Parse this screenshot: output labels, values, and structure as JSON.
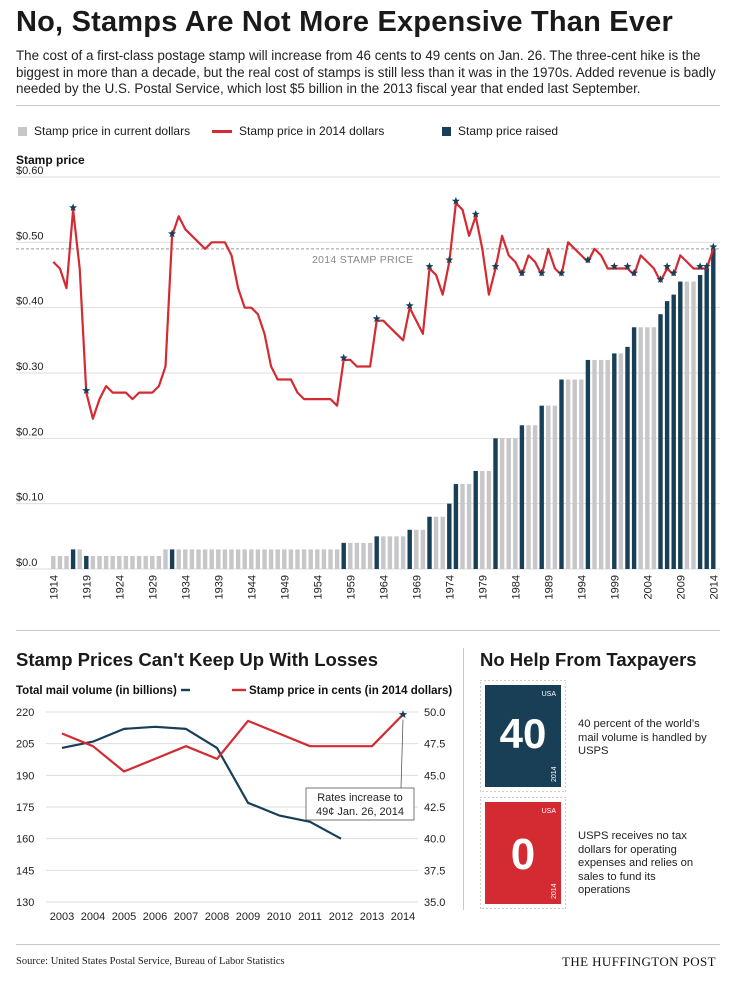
{
  "header": {
    "title": "No, Stamps Are Not More Expensive Than Ever",
    "subtitle": "The cost of a first-class postage stamp will increase from 46 cents to 49 cents on Jan. 26. The three-cent hike is the biggest in more than a decade, but the real cost of stamps is still less than it was in the 1970s. Added revenue is badly needed by the U.S. Postal Service, which lost $5 billion in the 2013 fiscal year that ended last September."
  },
  "legend": {
    "current": "Stamp price in current dollars",
    "real": "Stamp price in 2014 dollars",
    "raised": "Stamp price raised"
  },
  "colors": {
    "red": "#d42a32",
    "navy": "#183f56",
    "gray": "#c7c7c9",
    "grid": "#dedede"
  },
  "chart_data": [
    {
      "type": "bar",
      "title": "Stamp price",
      "ylabel": "Stamp price",
      "ylim": [
        0,
        0.6
      ],
      "yticks": [
        "$0.0",
        "$0.10",
        "$0.20",
        "$0.30",
        "$0.40",
        "$0.50",
        "$0.60"
      ],
      "x_tick_labels": [
        "1914",
        "1919",
        "1924",
        "1929",
        "1934",
        "1939",
        "1944",
        "1949",
        "1954",
        "1959",
        "1964",
        "1969",
        "1974",
        "1979",
        "1984",
        "1989",
        "1994",
        "1999",
        "2004",
        "2009",
        "2014"
      ],
      "reference_line": {
        "label": "2014 STAMP PRICE",
        "value": 0.49
      },
      "years": [
        1914,
        1915,
        1916,
        1917,
        1918,
        1919,
        1920,
        1921,
        1922,
        1923,
        1924,
        1925,
        1926,
        1927,
        1928,
        1929,
        1930,
        1931,
        1932,
        1933,
        1934,
        1935,
        1936,
        1937,
        1938,
        1939,
        1940,
        1941,
        1942,
        1943,
        1944,
        1945,
        1946,
        1947,
        1948,
        1949,
        1950,
        1951,
        1952,
        1953,
        1954,
        1955,
        1956,
        1957,
        1958,
        1959,
        1960,
        1961,
        1962,
        1963,
        1964,
        1965,
        1966,
        1967,
        1968,
        1969,
        1970,
        1971,
        1972,
        1973,
        1974,
        1975,
        1976,
        1977,
        1978,
        1979,
        1980,
        1981,
        1982,
        1983,
        1984,
        1985,
        1986,
        1987,
        1988,
        1989,
        1990,
        1991,
        1992,
        1993,
        1994,
        1995,
        1996,
        1997,
        1998,
        1999,
        2000,
        2001,
        2002,
        2003,
        2004,
        2005,
        2006,
        2007,
        2008,
        2009,
        2010,
        2011,
        2012,
        2013,
        2014
      ],
      "series": [
        {
          "name": "Stamp price in current dollars",
          "values": [
            0.02,
            0.02,
            0.02,
            0.03,
            0.03,
            0.02,
            0.02,
            0.02,
            0.02,
            0.02,
            0.02,
            0.02,
            0.02,
            0.02,
            0.02,
            0.02,
            0.02,
            0.03,
            0.03,
            0.03,
            0.03,
            0.03,
            0.03,
            0.03,
            0.03,
            0.03,
            0.03,
            0.03,
            0.03,
            0.03,
            0.03,
            0.03,
            0.03,
            0.03,
            0.03,
            0.03,
            0.03,
            0.03,
            0.03,
            0.03,
            0.03,
            0.03,
            0.03,
            0.03,
            0.04,
            0.04,
            0.04,
            0.04,
            0.04,
            0.05,
            0.05,
            0.05,
            0.05,
            0.05,
            0.06,
            0.06,
            0.06,
            0.08,
            0.08,
            0.08,
            0.1,
            0.13,
            0.13,
            0.13,
            0.15,
            0.15,
            0.15,
            0.2,
            0.2,
            0.2,
            0.2,
            0.22,
            0.22,
            0.22,
            0.25,
            0.25,
            0.25,
            0.29,
            0.29,
            0.29,
            0.29,
            0.32,
            0.32,
            0.32,
            0.32,
            0.33,
            0.33,
            0.34,
            0.37,
            0.37,
            0.37,
            0.37,
            0.39,
            0.41,
            0.42,
            0.44,
            0.44,
            0.44,
            0.45,
            0.46,
            0.49
          ]
        },
        {
          "name": "Stamp price in 2014 dollars",
          "values": [
            0.47,
            0.46,
            0.43,
            0.55,
            0.46,
            0.27,
            0.23,
            0.26,
            0.28,
            0.27,
            0.27,
            0.27,
            0.26,
            0.27,
            0.27,
            0.27,
            0.28,
            0.31,
            0.51,
            0.54,
            0.52,
            0.51,
            0.5,
            0.49,
            0.5,
            0.5,
            0.5,
            0.48,
            0.43,
            0.4,
            0.4,
            0.39,
            0.36,
            0.31,
            0.29,
            0.29,
            0.29,
            0.27,
            0.26,
            0.26,
            0.26,
            0.26,
            0.26,
            0.25,
            0.32,
            0.32,
            0.31,
            0.31,
            0.31,
            0.38,
            0.38,
            0.37,
            0.36,
            0.35,
            0.4,
            0.38,
            0.36,
            0.46,
            0.45,
            0.42,
            0.47,
            0.56,
            0.55,
            0.51,
            0.54,
            0.49,
            0.42,
            0.46,
            0.51,
            0.48,
            0.47,
            0.45,
            0.48,
            0.47,
            0.45,
            0.49,
            0.46,
            0.45,
            0.5,
            0.49,
            0.48,
            0.47,
            0.49,
            0.48,
            0.46,
            0.46,
            0.46,
            0.46,
            0.45,
            0.48,
            0.47,
            0.46,
            0.44,
            0.46,
            0.45,
            0.48,
            0.47,
            0.46,
            0.46,
            0.46,
            0.49
          ]
        }
      ],
      "raised_years": [
        1917,
        1919,
        1932,
        1958,
        1963,
        1968,
        1971,
        1974,
        1975,
        1978,
        1981,
        1981,
        1985,
        1988,
        1991,
        1995,
        1999,
        2001,
        2002,
        2006,
        2007,
        2008,
        2009,
        2012,
        2013,
        2014
      ],
      "star_years": [
        1917,
        1919,
        1932,
        1958,
        1963,
        1968,
        1971,
        1974,
        1975,
        1978,
        1981,
        1985,
        1988,
        1991,
        1995,
        1999,
        2001,
        2002,
        2006,
        2007,
        2008,
        2012,
        2013,
        2014
      ]
    },
    {
      "type": "line",
      "title": "Stamp Prices Can't Keep Up With Losses",
      "x": [
        "2003",
        "2004",
        "2005",
        "2006",
        "2007",
        "2008",
        "2009",
        "2010",
        "2011",
        "2012",
        "2013",
        "2014"
      ],
      "left_axis": {
        "label": "Total mail volume (in billions)",
        "ticks": [
          "220",
          "205",
          "190",
          "175",
          "160",
          "145",
          "130"
        ],
        "range": [
          130,
          220
        ]
      },
      "right_axis": {
        "label": "Stamp price in cents (in 2014 dollars)",
        "ticks": [
          "50.0",
          "47.5",
          "45.0",
          "42.5",
          "40.0",
          "37.5",
          "35.0"
        ],
        "range": [
          35,
          50
        ]
      },
      "series": [
        {
          "name": "Total mail volume (in billions)",
          "axis": "left",
          "values": [
            203,
            206,
            212,
            213,
            212,
            203,
            177,
            171,
            168,
            160,
            null,
            null
          ]
        },
        {
          "name": "Stamp price in cents (in 2014 dollars)",
          "axis": "right",
          "values": [
            48.3,
            47.3,
            45.3,
            46.3,
            47.3,
            46.3,
            49.3,
            48.3,
            47.3,
            47.3,
            47.3,
            49.8
          ]
        }
      ],
      "annotation": {
        "line1": "Rates increase to",
        "line2": "49¢ Jan. 26, 2014"
      }
    }
  ],
  "taxpayers": {
    "title": "No Help From Taxpayers",
    "stamp1": {
      "country": "USA",
      "value": "40",
      "year": "2014",
      "text": "40 percent of the world’s mail volume is handled by USPS"
    },
    "stamp2": {
      "country": "USA",
      "value": "0",
      "year": "2014",
      "text": "USPS receives no tax dollars for operating expenses and relies on sales to fund its operations"
    }
  },
  "footer": {
    "source": "Source: United States Postal Service, Bureau of Labor Statistics",
    "brand": "THE HUFFINGTON POST"
  }
}
